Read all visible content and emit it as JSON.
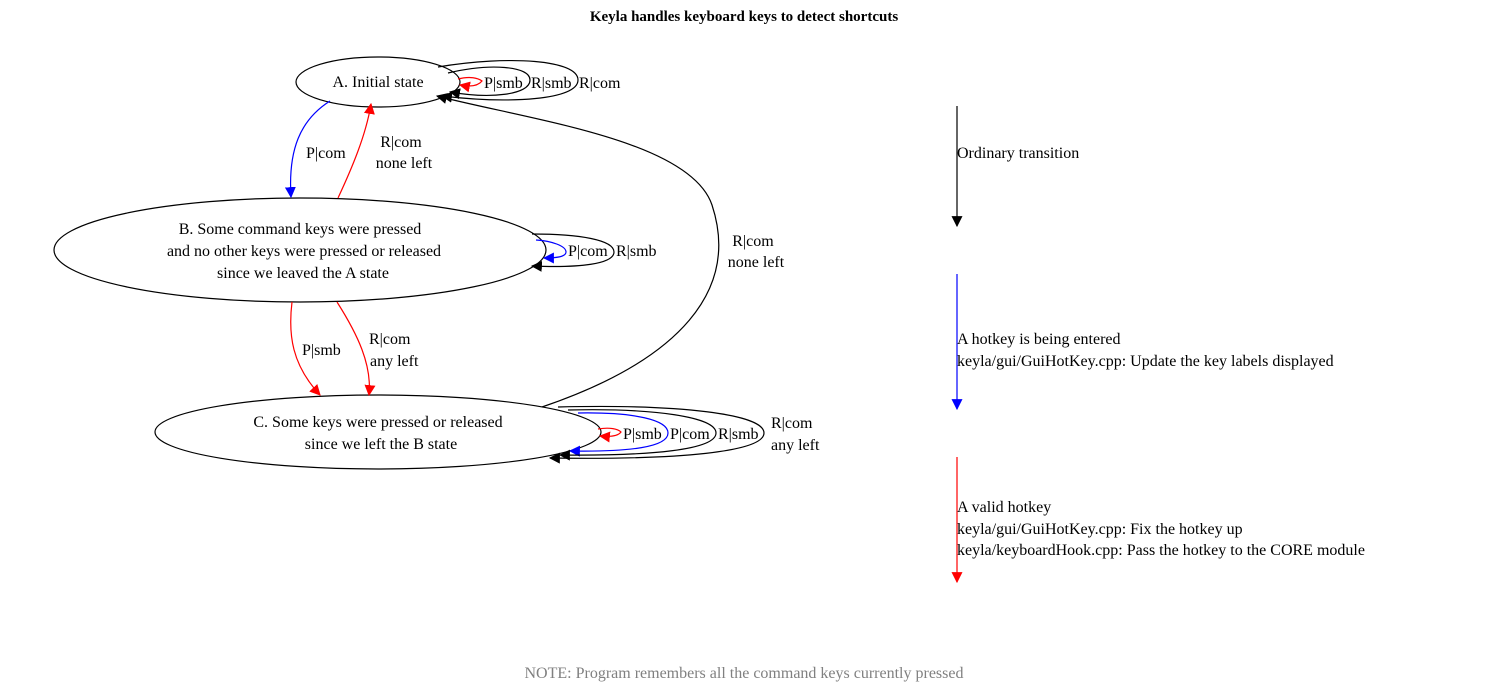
{
  "title": "Keyla handles keyboard keys to detect shortcuts",
  "note": "NOTE: Program remembers all the command keys currently pressed",
  "colors": {
    "ordinary": "#000000",
    "entering": "#0000ff",
    "valid": "#ff0000",
    "note": "#808080"
  },
  "nodes": {
    "a": {
      "lines": [
        "A. Initial state"
      ]
    },
    "b": {
      "lines": [
        "B. Some command keys were pressed",
        "and no other keys were pressed or released",
        "since we leaved the A state"
      ]
    },
    "c": {
      "lines": [
        "C. Some keys were pressed or released",
        "since we left the B state"
      ]
    }
  },
  "edges": {
    "a_self_psmb": "P|smb",
    "a_self_rsmb": "R|smb",
    "a_self_rcom": "R|com",
    "a_to_b": "P|com",
    "b_to_a_1": "R|com",
    "b_to_a_2": "none left",
    "b_self_pcom": "P|com",
    "b_self_rsmb": "R|smb",
    "b_to_c_psmb": "P|smb",
    "b_to_c_rcom_1": "R|com",
    "b_to_c_rcom_2": "any left",
    "c_to_a_1": "R|com",
    "c_to_a_2": "none left",
    "c_self_psmb": "P|smb",
    "c_self_pcom": "P|com",
    "c_self_rsmb": "R|smb",
    "c_self_rcom_1": "R|com",
    "c_self_rcom_2": "any left"
  },
  "legend": {
    "ordinary": [
      "Ordinary transition"
    ],
    "entering": [
      "A hotkey is being entered",
      "keyla/gui/GuiHotKey.cpp: Update the key labels displayed"
    ],
    "valid": [
      "A valid hotkey",
      "keyla/gui/GuiHotKey.cpp: Fix the hotkey up",
      "keyla/keyboardHook.cpp: Pass the hotkey to the CORE module"
    ]
  }
}
